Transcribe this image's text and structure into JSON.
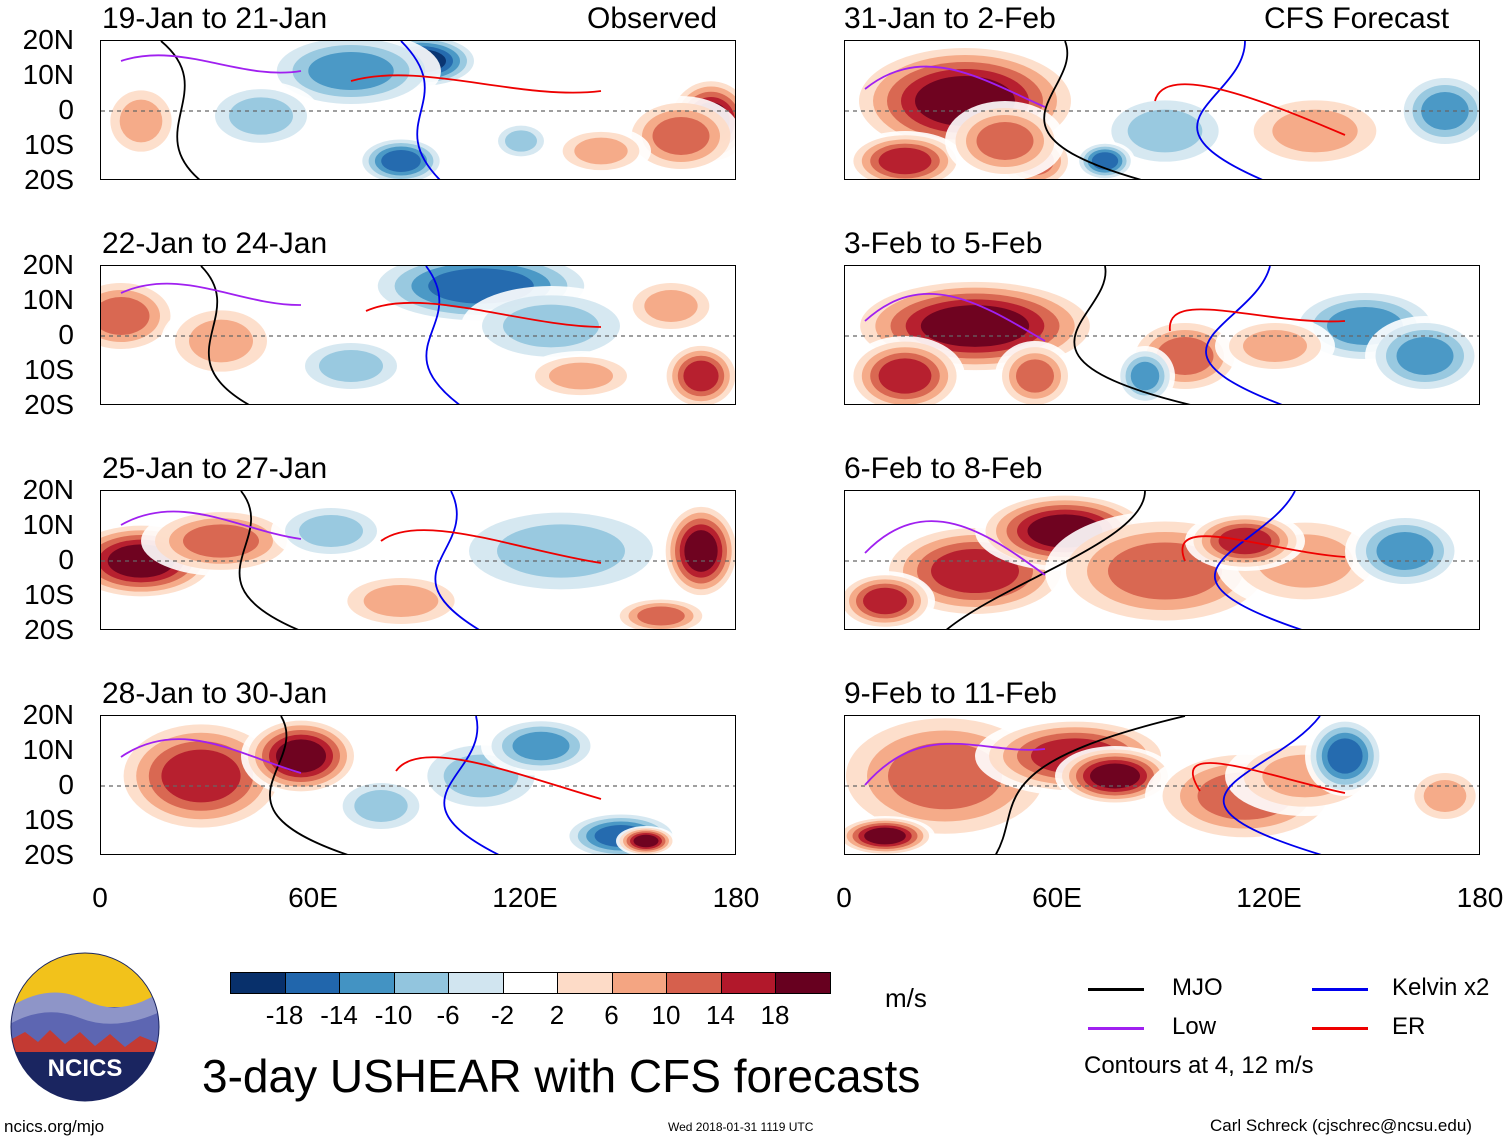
{
  "figure": {
    "title": "3-day USHEAR with CFS forecasts",
    "units": "m/s",
    "left_column_label": "Observed",
    "right_column_label": "CFS Forecast"
  },
  "y_ticks": [
    "20N",
    "10N",
    "0",
    "10S",
    "20S"
  ],
  "x_ticks": [
    "0",
    "60E",
    "120E",
    "180"
  ],
  "panels_left": [
    {
      "title": "19-Jan to 21-Jan"
    },
    {
      "title": "22-Jan to 24-Jan"
    },
    {
      "title": "25-Jan to 27-Jan"
    },
    {
      "title": "28-Jan to 30-Jan"
    }
  ],
  "panels_right": [
    {
      "title": "31-Jan to 2-Feb"
    },
    {
      "title": "3-Feb to 5-Feb"
    },
    {
      "title": "6-Feb to 8-Feb"
    },
    {
      "title": "9-Feb to 11-Feb"
    }
  ],
  "colorbar": {
    "labels": [
      "-18",
      "-14",
      "-10",
      "-6",
      "-2",
      "2",
      "6",
      "10",
      "14",
      "18"
    ],
    "colors": [
      "#08306b",
      "#2166ac",
      "#4393c3",
      "#92c5de",
      "#d1e5f0",
      "#ffffff",
      "#fddbc7",
      "#f4a582",
      "#d6604d",
      "#b2182b",
      "#67001f"
    ]
  },
  "legend": {
    "items": [
      {
        "label": "MJO",
        "color": "#000000"
      },
      {
        "label": "Kelvin x2",
        "color": "#0000ee"
      },
      {
        "label": "Low",
        "color": "#a020f0"
      },
      {
        "label": "ER",
        "color": "#ee0000"
      }
    ],
    "note": "Contours at 4, 12 m/s"
  },
  "logo": {
    "text": "NCICS"
  },
  "footer": {
    "left": "ncics.org/mjo",
    "center": "Wed 2018-01-31 1119 UTC",
    "right": "Carl Schreck (cjschrec@ncsu.edu)"
  }
}
